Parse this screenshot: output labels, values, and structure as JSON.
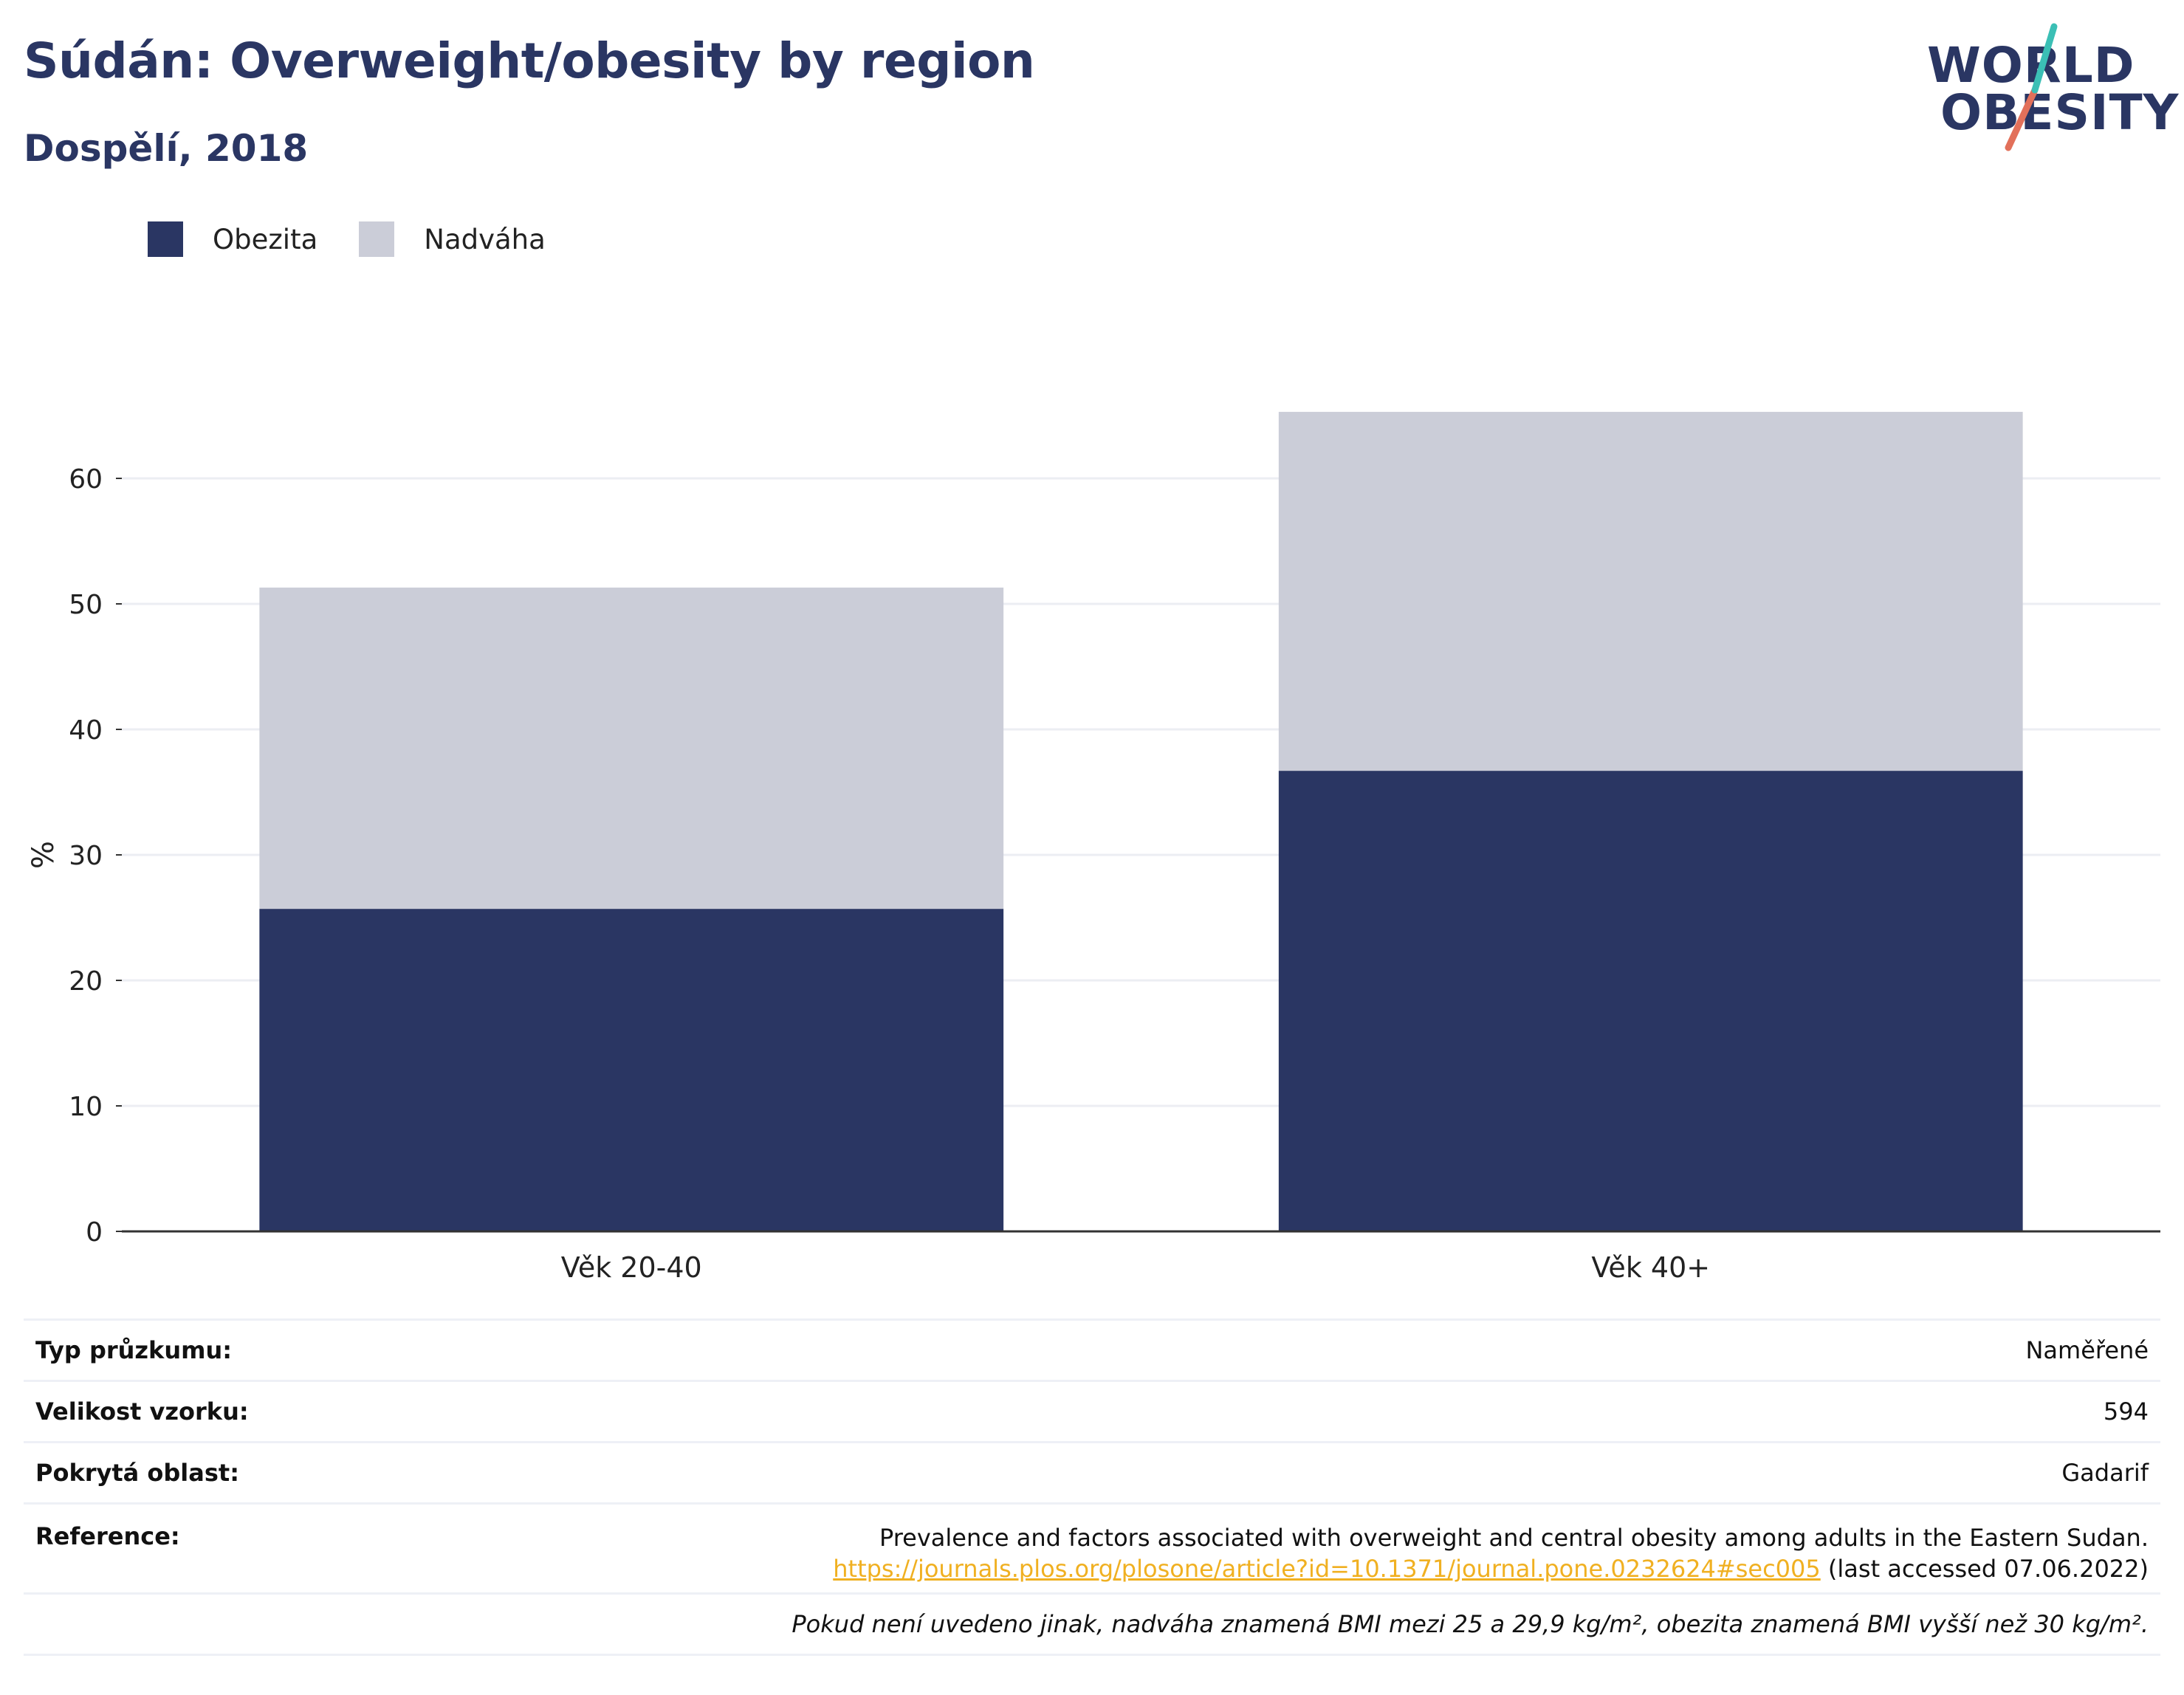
{
  "header": {
    "title": "Súdán: Overweight/obesity by region",
    "subtitle": "Dospělí, 2018"
  },
  "logo": {
    "line1": "WORLD",
    "line2": "OBESITY"
  },
  "colors": {
    "obesity": "#2a3663",
    "overweight": "#cbcdd8",
    "grid": "#eceef3",
    "link": "#f0b021"
  },
  "chart_data": {
    "type": "bar",
    "stacked": true,
    "categories": [
      "Věk 20-40",
      "Věk 40+"
    ],
    "series": [
      {
        "name": "Obezita",
        "values": [
          25.7,
          36.7
        ]
      },
      {
        "name": "Nadváha",
        "values": [
          25.6,
          28.6
        ]
      }
    ],
    "ylabel": "%",
    "ylim": [
      0,
      70
    ],
    "yticks": [
      0,
      10,
      20,
      30,
      40,
      50,
      60
    ],
    "grid": true,
    "legend_position": "top-left"
  },
  "info": {
    "survey_type_label": "Typ průzkumu:",
    "survey_type_value": "Naměřené",
    "sample_size_label": "Velikost vzorku:",
    "sample_size_value": "594",
    "area_label": "Pokrytá oblast:",
    "area_value": "Gadarif",
    "reference_label": "Reference:",
    "reference_text": "Prevalence and factors associated with overweight and central obesity among adults in the Eastern Sudan.",
    "reference_link": "https://journals.plos.org/plosone/article?id=10.1371/journal.pone.0232624#sec005",
    "reference_accessed": " (last accessed 07.06.2022)",
    "note": "Pokud není uvedeno jinak, nadváha znamená BMI mezi 25 a 29,9 kg/m², obezita znamená BMI vyšší než 30 kg/m²."
  }
}
